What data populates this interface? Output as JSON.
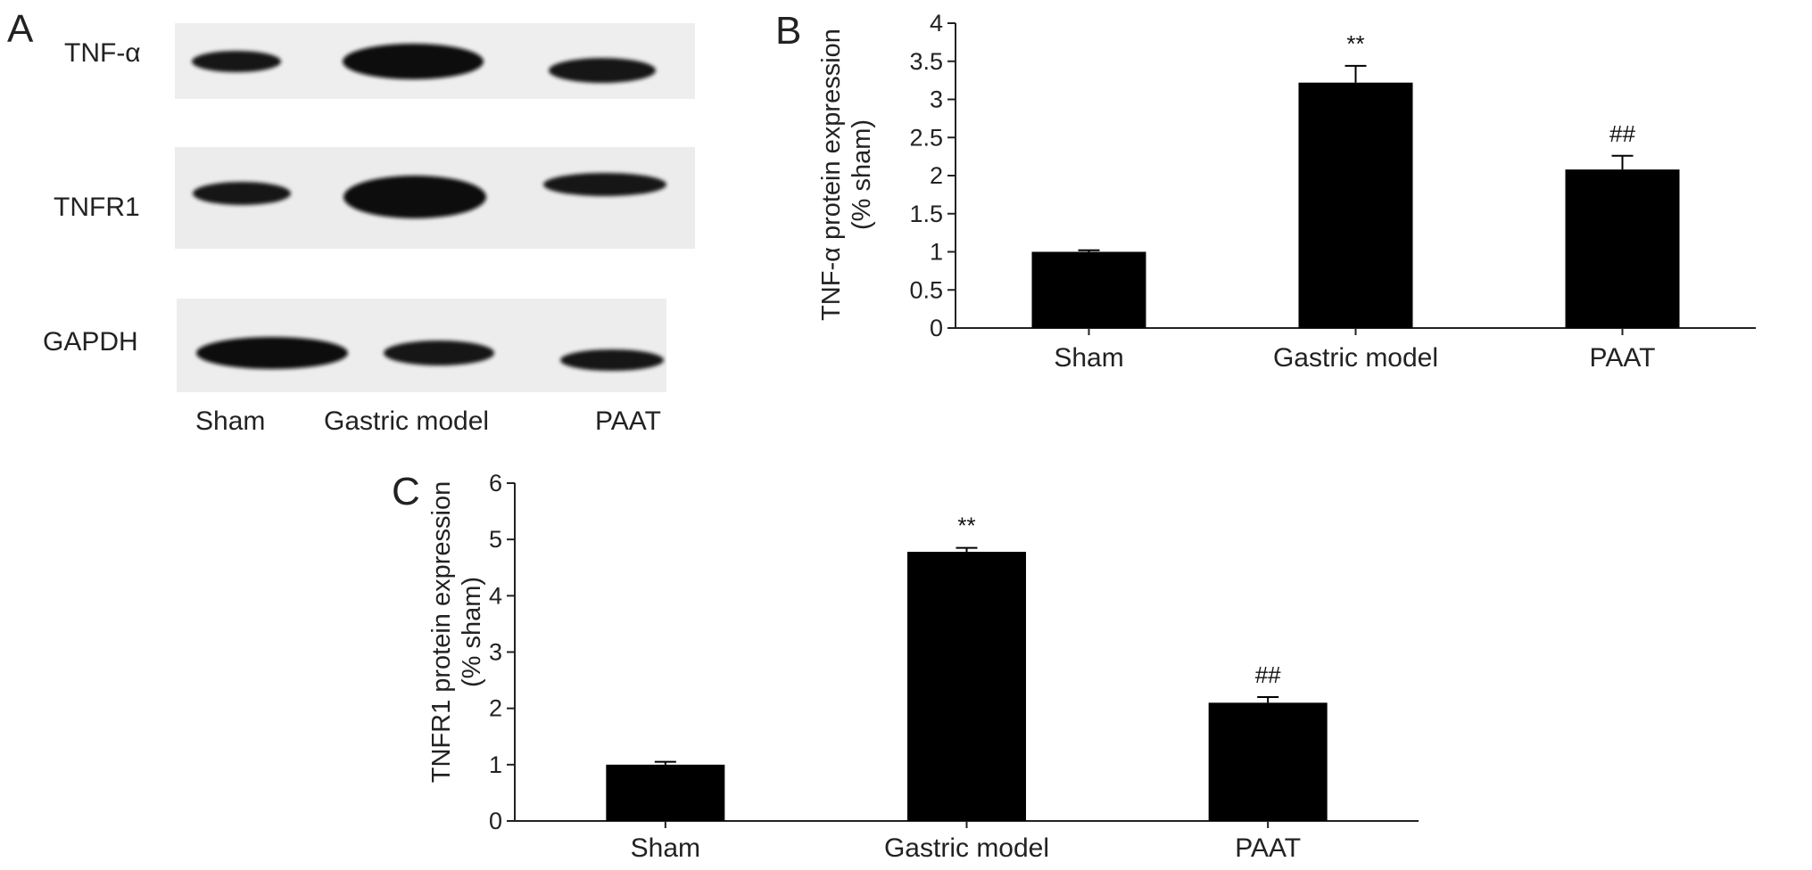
{
  "panel_a": {
    "letter": "A",
    "rows": [
      "TNF-α",
      "TNFR1",
      "GAPDH"
    ],
    "lanes": [
      "Sham",
      "Gastric model",
      "PAAT"
    ]
  },
  "chart_data": [
    {
      "panel": "B",
      "type": "bar",
      "categories": [
        "Sham",
        "Gastric model",
        "PAAT"
      ],
      "values": [
        1.0,
        3.22,
        2.08
      ],
      "errors": [
        0.02,
        0.22,
        0.18
      ],
      "significance": [
        "",
        "**",
        "##"
      ],
      "ylabel": [
        "TNF-α protein expression",
        "(% sham)"
      ],
      "ylim": [
        0,
        4
      ],
      "yticks": [
        0,
        0.5,
        1,
        1.5,
        2,
        2.5,
        3,
        3.5,
        4
      ],
      "grid": false
    },
    {
      "panel": "C",
      "type": "bar",
      "categories": [
        "Sham",
        "Gastric model",
        "PAAT"
      ],
      "values": [
        1.0,
        4.78,
        2.1
      ],
      "errors": [
        0.05,
        0.07,
        0.1
      ],
      "significance": [
        "",
        "**",
        "##"
      ],
      "ylabel": [
        "TNFR1 protein expression",
        "(% sham)"
      ],
      "ylim": [
        0,
        6
      ],
      "yticks": [
        0,
        1,
        2,
        3,
        4,
        5,
        6
      ],
      "grid": false
    }
  ]
}
